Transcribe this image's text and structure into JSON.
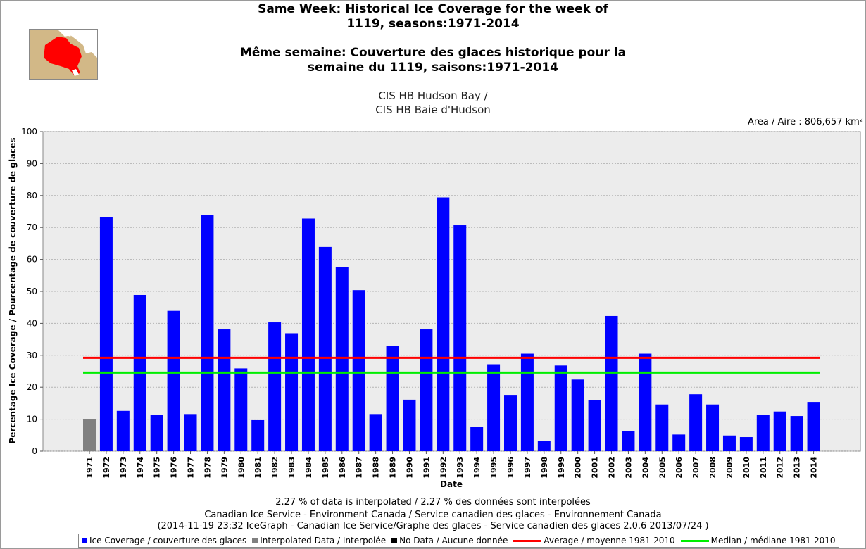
{
  "header": {
    "title_en_1": "Same Week: Historical Ice Coverage for the week of",
    "title_en_2": "1119, seasons:1971-2014",
    "title_fr_1": "Même semaine: Couverture des glaces historique pour la",
    "title_fr_2": "semaine du 1119, saisons:1971-2014",
    "region_1": "CIS HB Hudson Bay /",
    "region_2": "CIS HB Baie d'Hudson",
    "area": "Area / Aire : 806,657 km²"
  },
  "colors": {
    "coverage": "#0000ff",
    "interpolated": "#808080",
    "nodata": "#000000",
    "average": "#ff0000",
    "median": "#00ee00",
    "plot_bg": "#ececec",
    "map_land": "#d2b887",
    "map_region": "#ff0000"
  },
  "chart_data": {
    "type": "bar",
    "xlabel": "Date",
    "ylabel": "Percentage Ice Coverage / Pourcentage de couverture de glaces",
    "ylim": [
      0,
      100
    ],
    "yticks": [
      0,
      10,
      20,
      30,
      40,
      50,
      60,
      70,
      80,
      90,
      100
    ],
    "grid": true,
    "categories": [
      "1971",
      "1972",
      "1973",
      "1974",
      "1975",
      "1976",
      "1977",
      "1978",
      "1979",
      "1980",
      "1981",
      "1982",
      "1983",
      "1984",
      "1985",
      "1986",
      "1987",
      "1988",
      "1989",
      "1990",
      "1991",
      "1992",
      "1993",
      "1994",
      "1995",
      "1996",
      "1997",
      "1998",
      "1999",
      "2000",
      "2001",
      "2002",
      "2003",
      "2004",
      "2005",
      "2006",
      "2007",
      "2008",
      "2009",
      "2010",
      "2011",
      "2012",
      "2013",
      "2014"
    ],
    "values": [
      10.0,
      73.3,
      12.6,
      48.9,
      11.3,
      43.9,
      11.6,
      74.0,
      38.1,
      25.9,
      9.7,
      40.3,
      36.9,
      72.8,
      63.9,
      57.5,
      50.4,
      11.6,
      33.0,
      16.1,
      38.1,
      79.4,
      70.7,
      7.6,
      27.2,
      17.6,
      30.5,
      3.3,
      26.8,
      22.4,
      15.9,
      42.3,
      6.3,
      30.5,
      14.6,
      5.2,
      17.8,
      14.6,
      4.9,
      4.4,
      11.3,
      12.4,
      11.0,
      15.4
    ],
    "interpolated": [
      "1971"
    ],
    "average_1981_2010": 29.2,
    "median_1981_2010": 24.6
  },
  "footer": {
    "line1": "2.27 % of data is interpolated / 2.27 % des données sont interpolées",
    "line2": "Canadian Ice Service - Environment Canada / Service canadien des glaces - Environnement Canada",
    "line3": "(2014-11-19 23:32 IceGraph - Canadian Ice Service/Graphe des glaces - Service canadien des glaces 2.0.6 2013/07/24 )"
  },
  "legend": {
    "coverage": "Ice Coverage / couverture des glaces",
    "interpolated": "Interpolated Data / Interpolée",
    "nodata": "No Data / Aucune donnée",
    "average": "Average / moyenne 1981-2010",
    "median": "Median / médiane 1981-2010"
  }
}
